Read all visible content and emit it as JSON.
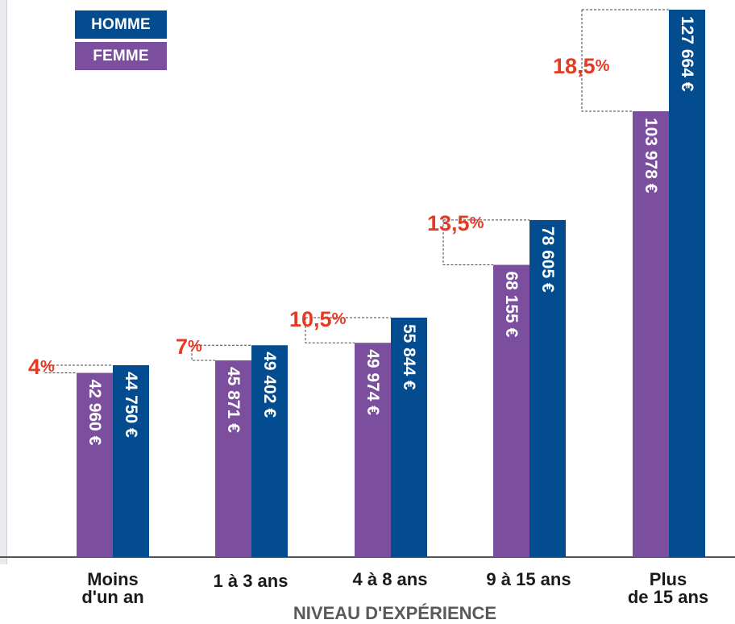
{
  "chart_data": {
    "type": "bar",
    "categories": [
      [
        "Moins",
        "d'un an"
      ],
      [
        "1 à 3 ans"
      ],
      [
        "4 à 8 ans"
      ],
      [
        "9 à 15 ans"
      ],
      [
        "Plus",
        "de 15 ans"
      ]
    ],
    "series": [
      {
        "name": "FEMME",
        "color": "#7b4f9e",
        "values": [
          42960,
          45871,
          49974,
          68155,
          103978
        ],
        "labels": [
          "42 960 €",
          "45 871 €",
          "49 974 €",
          "68 155 €",
          "103 978 €"
        ]
      },
      {
        "name": "HOMME",
        "color": "#034c8f",
        "values": [
          44750,
          49402,
          55844,
          78605,
          127664
        ],
        "labels": [
          "44 750 €",
          "49 402 €",
          "55 844 €",
          "78 605 €",
          "127 664 €"
        ]
      }
    ],
    "gap_labels": [
      {
        "number": "4",
        "unit": "%"
      },
      {
        "number": "7",
        "unit": "%"
      },
      {
        "number": "10,5",
        "unit": "%"
      },
      {
        "number": "13,5",
        "unit": "%"
      },
      {
        "number": "18,5",
        "unit": "%"
      }
    ],
    "xlabel": "NIVEAU D'EXPÉRIENCE",
    "ylabel": "",
    "ylim": [
      0,
      127664
    ],
    "grid": false,
    "legend_position": "top-left",
    "gap_color": "#e53b24",
    "axis_color": "#555555"
  }
}
